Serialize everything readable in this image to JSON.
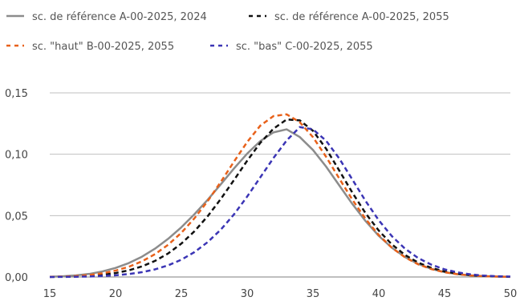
{
  "chart_data": {
    "type": "line",
    "title": "",
    "xlabel": "",
    "ylabel": "",
    "xlim": [
      15,
      50
    ],
    "ylim": [
      0,
      0.15
    ],
    "grid": "horizontal",
    "legend_position": "top",
    "x_ticks": [
      "15",
      "20",
      "25",
      "30",
      "35",
      "40",
      "45",
      "50"
    ],
    "y_ticks": [
      "0,00",
      "0,05",
      "0,10",
      "0,15"
    ],
    "x": [
      15,
      16,
      17,
      18,
      19,
      20,
      21,
      22,
      23,
      24,
      25,
      26,
      27,
      28,
      29,
      30,
      31,
      32,
      33,
      34,
      35,
      36,
      37,
      38,
      39,
      40,
      41,
      42,
      43,
      44,
      45,
      46,
      47,
      48,
      49,
      50
    ],
    "series": [
      {
        "name": "sc. de référence A-00-2025, 2024",
        "color": "#8c8c8c",
        "dash": "solid",
        "values": [
          0.0002,
          0.0006,
          0.0013,
          0.0025,
          0.0045,
          0.0074,
          0.0113,
          0.0165,
          0.0231,
          0.0311,
          0.0405,
          0.0512,
          0.0629,
          0.0755,
          0.0884,
          0.1005,
          0.1107,
          0.1178,
          0.1203,
          0.114,
          0.1035,
          0.0899,
          0.0746,
          0.0594,
          0.0455,
          0.0335,
          0.0238,
          0.0162,
          0.0106,
          0.0066,
          0.004,
          0.0023,
          0.0013,
          0.0007,
          0.0003,
          0.0002
        ]
      },
      {
        "name": "sc. de référence A-00-2025, 2055",
        "color": "#111111",
        "dash": "dashed",
        "values": [
          0.0001,
          0.0002,
          0.0004,
          0.0009,
          0.0018,
          0.0032,
          0.0054,
          0.0086,
          0.0131,
          0.0192,
          0.0272,
          0.0373,
          0.0495,
          0.0636,
          0.079,
          0.0947,
          0.1093,
          0.1208,
          0.1283,
          0.1276,
          0.1191,
          0.1045,
          0.0867,
          0.0686,
          0.0519,
          0.0378,
          0.0265,
          0.0179,
          0.0117,
          0.0074,
          0.0045,
          0.0027,
          0.0015,
          0.0008,
          0.0004,
          0.0002
        ]
      },
      {
        "name": "sc. \"haut\" B-00-2025, 2055",
        "color": "#e8611a",
        "dash": "dashed",
        "values": [
          0.0001,
          0.0003,
          0.0008,
          0.0016,
          0.003,
          0.0052,
          0.0083,
          0.0127,
          0.0186,
          0.0263,
          0.036,
          0.0479,
          0.0618,
          0.0775,
          0.094,
          0.1099,
          0.1233,
          0.1311,
          0.1325,
          0.1261,
          0.1139,
          0.0979,
          0.0802,
          0.0629,
          0.0473,
          0.0342,
          0.0238,
          0.016,
          0.0103,
          0.0064,
          0.0038,
          0.0022,
          0.0012,
          0.0006,
          0.0003,
          0.0001
        ]
      },
      {
        "name": "sc. \"bas\" C-00-2025, 2055",
        "color": "#3b35b5",
        "dash": "dashed",
        "values": [
          0.0,
          0.0001,
          0.0002,
          0.0004,
          0.0008,
          0.0014,
          0.0024,
          0.0039,
          0.0062,
          0.0095,
          0.0141,
          0.0203,
          0.0284,
          0.0386,
          0.051,
          0.0655,
          0.0812,
          0.0969,
          0.1112,
          0.1221,
          0.1203,
          0.111,
          0.0965,
          0.0793,
          0.0619,
          0.0462,
          0.0332,
          0.023,
          0.0154,
          0.01,
          0.0062,
          0.0037,
          0.0021,
          0.0011,
          0.0006,
          0.0003
        ]
      }
    ]
  }
}
